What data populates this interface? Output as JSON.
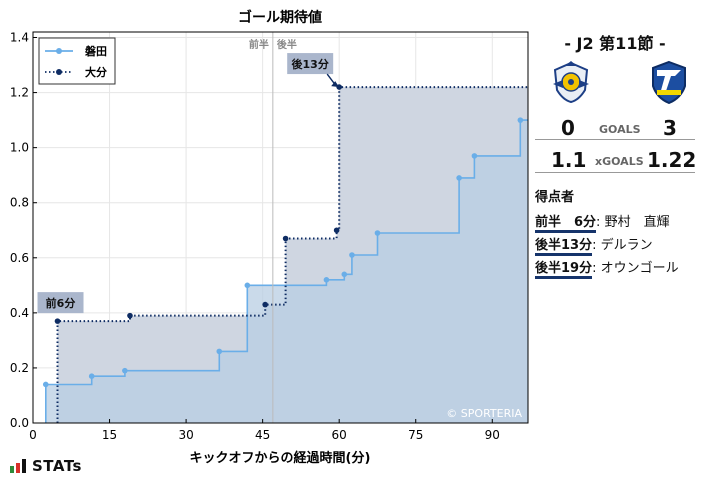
{
  "chart_data": {
    "type": "line",
    "title": "ゴール期待値",
    "xlabel": "キックオフからの経過時間(分)",
    "ylabel": "",
    "xlim": [
      0,
      97
    ],
    "ylim": [
      0,
      1.42
    ],
    "xticks": [
      0,
      15,
      30,
      45,
      60,
      75,
      90
    ],
    "yticks": [
      0.0,
      0.2,
      0.4,
      0.6,
      0.8,
      1.0,
      1.2,
      1.4
    ],
    "ytick_labels": [
      "0.0",
      "0.2",
      "0.4",
      "0.6",
      "0.8",
      "1.0",
      "1.2",
      "1.4"
    ],
    "halftime_x": 47,
    "halftime_labels": [
      "前半",
      "後半"
    ],
    "legend_position": "top-left",
    "grid": true,
    "series": [
      {
        "name": "磐田",
        "color": "#6aaee8",
        "fill": "#b8cde3",
        "style": "solid",
        "points": [
          [
            2.5,
            0.14
          ],
          [
            11.5,
            0.17
          ],
          [
            18,
            0.19
          ],
          [
            36.5,
            0.26
          ],
          [
            42,
            0.5
          ],
          [
            57.5,
            0.52
          ],
          [
            61,
            0.54
          ],
          [
            62.5,
            0.61
          ],
          [
            67.5,
            0.69
          ],
          [
            83.5,
            0.89
          ],
          [
            86.5,
            0.97
          ],
          [
            95.5,
            1.1
          ],
          [
            97,
            1.1
          ]
        ]
      },
      {
        "name": "大分",
        "color": "#0e2c63",
        "fill": "#cfd6e1",
        "style": "dotted",
        "points": [
          [
            4.8,
            0.37
          ],
          [
            19,
            0.39
          ],
          [
            45.5,
            0.43
          ],
          [
            49.5,
            0.67
          ],
          [
            59.5,
            0.7
          ],
          [
            60,
            1.22
          ],
          [
            97,
            1.22
          ]
        ]
      }
    ],
    "annotations": [
      {
        "label": "前6分",
        "x": 5,
        "y": 0.37
      },
      {
        "label": "後13分",
        "x": 60,
        "y": 1.22
      }
    ],
    "watermark": "© SPORTERIA"
  },
  "match": {
    "title": "- J2 第11節 -",
    "home_goals": "0",
    "away_goals": "3",
    "goals_label": "GOALS",
    "home_xg": "1.1",
    "away_xg": "1.22",
    "xg_label": "xGOALS",
    "scorers_title": "得点者",
    "scorers": [
      {
        "time": "前半　6分",
        "name": "野村　直輝"
      },
      {
        "time": "後半13分",
        "name": "デルラン"
      },
      {
        "time": "後半19分",
        "name": "オウンゴール"
      }
    ]
  },
  "brand": {
    "name": "STATs",
    "bar_colors": [
      "#2e8b3a",
      "#d8312a",
      "#111111"
    ]
  },
  "logos": {
    "home": "jubilo-iwata-crest-icon",
    "away": "trinita-oita-crest-icon"
  }
}
